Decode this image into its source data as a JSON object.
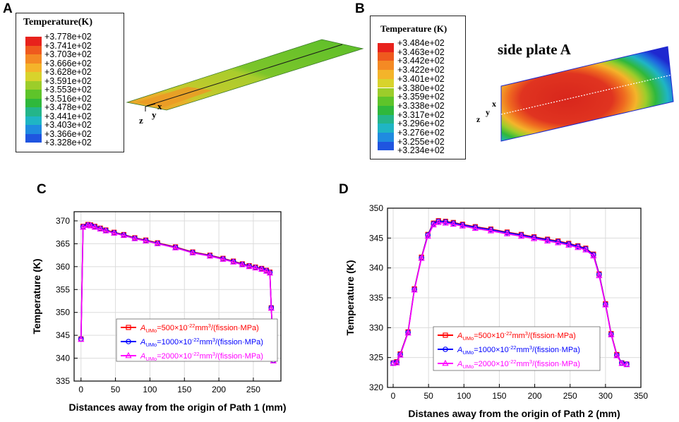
{
  "panel_labels": [
    "A",
    "B",
    "C",
    "D"
  ],
  "panel_a": {
    "legend_title": "Temperature(K)",
    "scale": [
      "+3.778e+02",
      "+3.741e+02",
      "+3.703e+02",
      "+3.666e+02",
      "+3.628e+02",
      "+3.591e+02",
      "+3.553e+02",
      "+3.516e+02",
      "+3.478e+02",
      "+3.441e+02",
      "+3.403e+02",
      "+3.366e+02",
      "+3.328e+02"
    ],
    "colors": [
      "#e8221c",
      "#ef5a1e",
      "#f48a24",
      "#f4b42a",
      "#d8d32c",
      "#9ccd2a",
      "#5ec42a",
      "#2fb83c",
      "#24b58a",
      "#1fb5c4",
      "#1f8be0",
      "#1f55e0",
      "#1f28d0"
    ],
    "axis_labels": [
      "z",
      "y",
      "x"
    ]
  },
  "panel_b": {
    "legend_title": "Temperature (K)",
    "scale": [
      "+3.484e+02",
      "+3.463e+02",
      "+3.442e+02",
      "+3.422e+02",
      "+3.401e+02",
      "+3.380e+02",
      "+3.359e+02",
      "+3.338e+02",
      "+3.317e+02",
      "+3.296e+02",
      "+3.276e+02",
      "+3.255e+02",
      "+3.234e+02"
    ],
    "colors": [
      "#e8221c",
      "#ef5a1e",
      "#f48a24",
      "#f4b42a",
      "#d8d32c",
      "#9ccd2a",
      "#5ec42a",
      "#2fb83c",
      "#24b58a",
      "#1fb5c4",
      "#1f8be0",
      "#1f55e0",
      "#1f28d0"
    ],
    "side_label": "side plate A",
    "axis_labels": [
      "z",
      "y",
      "x"
    ]
  },
  "chart_data": [
    {
      "id": "C",
      "type": "line",
      "xlabel": "Distances away from the origin of Path 1 (mm)",
      "ylabel": "Temperature (K)",
      "xlim": [
        -10,
        290
      ],
      "ylim": [
        335,
        372
      ],
      "xticks": [
        0,
        50,
        100,
        150,
        200,
        250
      ],
      "yticks": [
        335,
        340,
        345,
        350,
        355,
        360,
        365,
        370
      ],
      "grid": true,
      "legend_position": "bottom-center",
      "x": [
        0,
        3,
        10,
        14,
        20,
        28,
        36,
        48,
        62,
        78,
        94,
        111,
        137,
        162,
        187,
        206,
        221,
        234,
        244,
        253,
        262,
        269,
        274,
        276,
        278,
        279
      ],
      "series": [
        {
          "name": "A_UMo=500×10^-22 mm^3/(fission·MPa)",
          "legend_prefix": "A",
          "legend_sub": "UMo",
          "legend_text": "=500×10",
          "legend_exp": "-22",
          "legend_unit": "mm",
          "legend_unit_exp": "3",
          "legend_tail": "/(fission·MPa)",
          "color": "#ff0000",
          "marker": "square",
          "values": [
            344.2,
            368.8,
            369.2,
            369.1,
            368.8,
            368.4,
            368.0,
            367.5,
            367.0,
            366.3,
            365.8,
            365.2,
            364.3,
            363.2,
            362.5,
            361.8,
            361.2,
            360.6,
            360.2,
            359.9,
            359.6,
            359.2,
            358.8,
            351.0,
            345.0,
            339.5
          ]
        },
        {
          "name": "A_UMo=1000×10^-22 mm^3/(fission·MPa)",
          "legend_prefix": "A",
          "legend_sub": "UMo",
          "legend_text": "=1000×10",
          "legend_exp": "-22",
          "legend_unit": "mm",
          "legend_unit_exp": "3",
          "legend_tail": "/(fission·MPa)",
          "color": "#0000ff",
          "marker": "circle",
          "values": [
            344.2,
            368.7,
            369.1,
            369.0,
            368.7,
            368.3,
            367.9,
            367.4,
            366.9,
            366.2,
            365.7,
            365.1,
            364.2,
            363.1,
            362.4,
            361.7,
            361.1,
            360.5,
            360.1,
            359.8,
            359.5,
            359.1,
            358.7,
            351.0,
            345.0,
            339.5
          ]
        },
        {
          "name": "A_UMo=2000×10^-22 mm^3/(fission·MPa)",
          "legend_prefix": "A",
          "legend_sub": "UMo",
          "legend_text": "=2000×10",
          "legend_exp": "-22",
          "legend_unit": "mm",
          "legend_unit_exp": "3",
          "legend_tail": "/(fission·MPa)",
          "color": "#ff00ff",
          "marker": "triangle",
          "values": [
            344.1,
            368.6,
            369.0,
            368.9,
            368.6,
            368.2,
            367.8,
            367.3,
            366.8,
            366.1,
            365.6,
            365.0,
            364.1,
            363.0,
            362.3,
            361.6,
            361.0,
            360.4,
            360.0,
            359.7,
            359.4,
            359.0,
            358.6,
            350.9,
            344.9,
            339.4
          ]
        }
      ]
    },
    {
      "id": "D",
      "type": "line",
      "xlabel": "Distanes away from the origin of Path 2 (mm)",
      "ylabel": "Temperature (K)",
      "xlim": [
        -8,
        350
      ],
      "ylim": [
        320,
        350
      ],
      "xticks": [
        0,
        50,
        100,
        150,
        200,
        250,
        300,
        350
      ],
      "yticks": [
        320,
        325,
        330,
        335,
        340,
        345,
        350
      ],
      "grid": true,
      "legend_position": "bottom-center",
      "x": [
        0,
        5,
        10,
        21,
        30,
        40,
        49,
        57,
        64,
        74,
        85,
        98,
        116,
        138,
        161,
        181,
        199,
        218,
        233,
        248,
        261,
        272,
        283,
        291,
        300,
        308,
        316,
        323,
        330
      ],
      "series": [
        {
          "name": "A_UMo=500×10^-22 mm^3/(fission·MPa)",
          "legend_prefix": "A",
          "legend_sub": "UMo",
          "legend_text": "=500×10",
          "legend_exp": "-22",
          "legend_unit": "mm",
          "legend_unit_exp": "3",
          "legend_tail": "/(fission·MPa)",
          "color": "#ff0000",
          "marker": "square",
          "values": [
            324.1,
            324.3,
            325.6,
            329.3,
            336.5,
            341.8,
            345.6,
            347.5,
            347.9,
            347.8,
            347.6,
            347.3,
            346.9,
            346.5,
            346.0,
            345.6,
            345.2,
            344.8,
            344.5,
            344.1,
            343.7,
            343.3,
            342.3,
            339.0,
            334.0,
            329.0,
            325.5,
            324.1,
            323.9
          ]
        },
        {
          "name": "A_UMo=1000×10^-22 mm^3/(fission·MPa)",
          "legend_prefix": "A",
          "legend_sub": "UMo",
          "legend_text": "=1000×10",
          "legend_exp": "-22",
          "legend_unit": "mm",
          "legend_unit_exp": "3",
          "legend_tail": "/(fission·MPa)",
          "color": "#0000ff",
          "marker": "circle",
          "values": [
            324.1,
            324.2,
            325.5,
            329.2,
            336.4,
            341.7,
            345.5,
            347.4,
            347.8,
            347.7,
            347.5,
            347.2,
            346.8,
            346.4,
            345.9,
            345.5,
            345.1,
            344.7,
            344.4,
            344.0,
            343.6,
            343.2,
            342.2,
            338.9,
            333.9,
            328.9,
            325.4,
            324.1,
            323.9
          ]
        },
        {
          "name": "A_UMo=2000×10^-22 mm^3/(fission·MPa)",
          "legend_prefix": "A",
          "legend_sub": "UMo",
          "legend_text": "=2000×10",
          "legend_exp": "-22",
          "legend_unit": "mm",
          "legend_unit_exp": "3",
          "legend_tail": "/(fission·MPa)",
          "color": "#ff00ff",
          "marker": "triangle",
          "values": [
            324.0,
            324.1,
            325.4,
            329.1,
            336.3,
            341.6,
            345.3,
            347.2,
            347.6,
            347.5,
            347.3,
            347.0,
            346.6,
            346.2,
            345.7,
            345.3,
            344.9,
            344.5,
            344.2,
            343.8,
            343.4,
            343.0,
            342.0,
            338.7,
            333.8,
            328.8,
            325.3,
            324.0,
            323.8
          ]
        }
      ]
    }
  ]
}
